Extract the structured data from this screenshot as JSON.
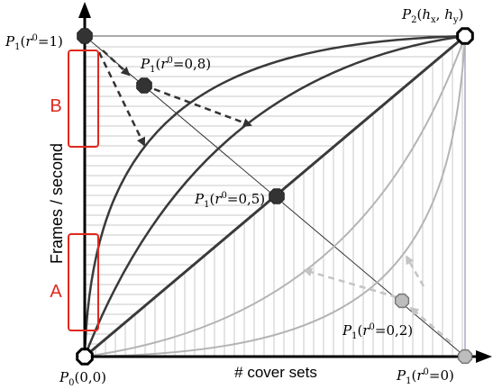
{
  "axes": {
    "x_label": "# cover sets",
    "y_label": "Frames / second"
  },
  "regions": {
    "a_label": "A",
    "b_label": "B",
    "color": "#e0281e"
  },
  "points": {
    "origin": {
      "symbol": "P",
      "sub": "0",
      "text": "(0,0)"
    },
    "p2": {
      "symbol": "P",
      "sub": "2",
      "text_open": "(",
      "hx": "h",
      "hx_sub": "x",
      "comma": ", ",
      "hy": "h",
      "hy_sub": "y",
      "text_close": ")"
    },
    "p1_r1": {
      "symbol": "P",
      "sub": "1",
      "r": "r",
      "r_sup": "0",
      "text": "=1)"
    },
    "p1_r08": {
      "symbol": "P",
      "sub": "1",
      "r": "r",
      "r_sup": "0",
      "text": "=0,8)"
    },
    "p1_r05": {
      "symbol": "P",
      "sub": "1",
      "r": "r",
      "r_sup": "0",
      "text": "=0,5)"
    },
    "p1_r02": {
      "symbol": "P",
      "sub": "1",
      "r": "r",
      "r_sup": "0",
      "text": "=0,2)"
    },
    "p1_r0": {
      "symbol": "P",
      "sub": "1",
      "r": "r",
      "r_sup": "0",
      "text": "=0)"
    }
  },
  "colors": {
    "dark_curve": "#3a3a3a",
    "light_curve": "#b4b4b4",
    "hatch": "#c8c8c8",
    "dark_node": "#333333",
    "light_node": "#bdbdbd"
  }
}
